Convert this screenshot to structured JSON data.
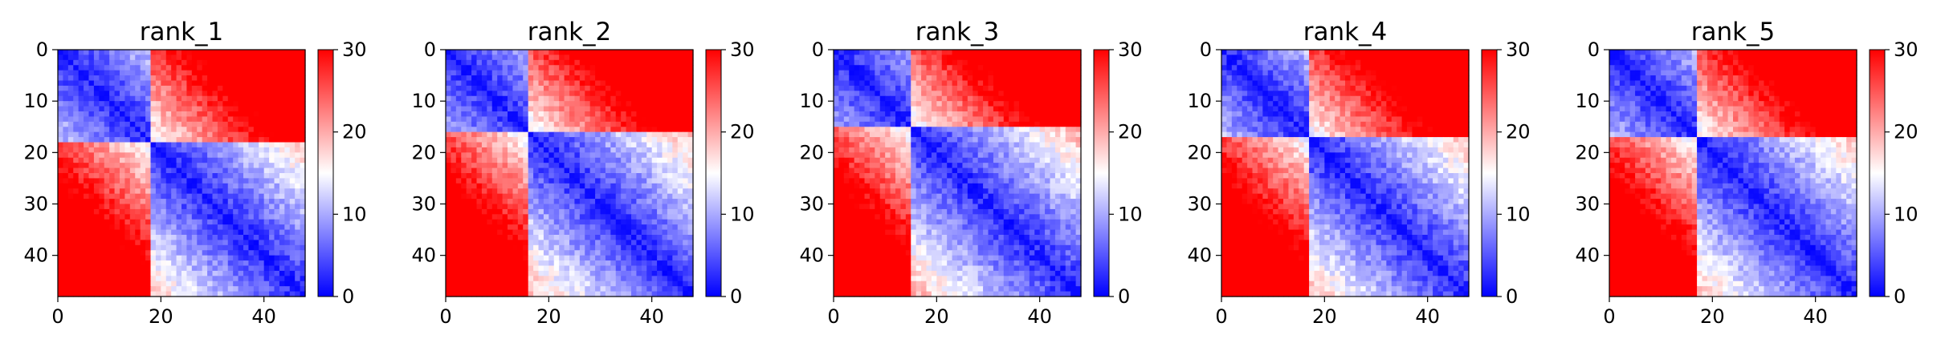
{
  "chart_data": [
    {
      "type": "heatmap",
      "title": "rank_1",
      "seed": 11,
      "x_ticks": [
        "0",
        "20",
        "40"
      ],
      "y_ticks": [
        "0",
        "10",
        "20",
        "30",
        "40"
      ],
      "colorbar_ticks": [
        "0",
        "10",
        "20",
        "30"
      ],
      "xlim": [
        0,
        48
      ],
      "ylim": [
        0,
        48
      ],
      "n": 48,
      "vmin": 0,
      "vmax": 30,
      "colormap": {
        "low": "#0000ff",
        "mid": "#ffffff",
        "high": "#ff0000"
      },
      "domains": [
        [
          0,
          18
        ],
        [
          18,
          48
        ]
      ]
    },
    {
      "type": "heatmap",
      "title": "rank_2",
      "seed": 23,
      "x_ticks": [
        "0",
        "20",
        "40"
      ],
      "y_ticks": [
        "0",
        "10",
        "20",
        "30",
        "40"
      ],
      "colorbar_ticks": [
        "0",
        "10",
        "20",
        "30"
      ],
      "xlim": [
        0,
        48
      ],
      "ylim": [
        0,
        48
      ],
      "n": 48,
      "vmin": 0,
      "vmax": 30,
      "colormap": {
        "low": "#0000ff",
        "mid": "#ffffff",
        "high": "#ff0000"
      },
      "domains": [
        [
          0,
          16
        ],
        [
          16,
          48
        ]
      ]
    },
    {
      "type": "heatmap",
      "title": "rank_3",
      "seed": 37,
      "x_ticks": [
        "0",
        "20",
        "40"
      ],
      "y_ticks": [
        "0",
        "10",
        "20",
        "30",
        "40"
      ],
      "colorbar_ticks": [
        "0",
        "10",
        "20",
        "30"
      ],
      "xlim": [
        0,
        48
      ],
      "ylim": [
        0,
        48
      ],
      "n": 48,
      "vmin": 0,
      "vmax": 30,
      "colormap": {
        "low": "#0000ff",
        "mid": "#ffffff",
        "high": "#ff0000"
      },
      "domains": [
        [
          0,
          15
        ],
        [
          15,
          48
        ]
      ]
    },
    {
      "type": "heatmap",
      "title": "rank_4",
      "seed": 41,
      "x_ticks": [
        "0",
        "20",
        "40"
      ],
      "y_ticks": [
        "0",
        "10",
        "20",
        "30",
        "40"
      ],
      "colorbar_ticks": [
        "0",
        "10",
        "20",
        "30"
      ],
      "xlim": [
        0,
        48
      ],
      "ylim": [
        0,
        48
      ],
      "n": 48,
      "vmin": 0,
      "vmax": 30,
      "colormap": {
        "low": "#0000ff",
        "mid": "#ffffff",
        "high": "#ff0000"
      },
      "domains": [
        [
          0,
          17
        ],
        [
          17,
          48
        ]
      ]
    },
    {
      "type": "heatmap",
      "title": "rank_5",
      "seed": 53,
      "x_ticks": [
        "0",
        "20",
        "40"
      ],
      "y_ticks": [
        "0",
        "10",
        "20",
        "30",
        "40"
      ],
      "colorbar_ticks": [
        "0",
        "10",
        "20",
        "30"
      ],
      "xlim": [
        0,
        48
      ],
      "ylim": [
        0,
        48
      ],
      "n": 48,
      "vmin": 0,
      "vmax": 30,
      "colormap": {
        "low": "#0000ff",
        "mid": "#ffffff",
        "high": "#ff0000"
      },
      "domains": [
        [
          0,
          17
        ],
        [
          17,
          48
        ]
      ]
    }
  ]
}
